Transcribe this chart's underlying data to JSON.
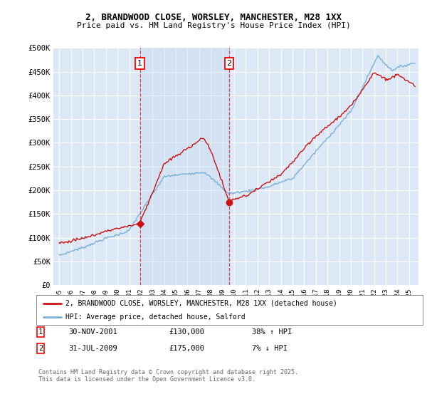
{
  "title_line1": "2, BRANDWOOD CLOSE, WORSLEY, MANCHESTER, M28 1XX",
  "title_line2": "Price paid vs. HM Land Registry's House Price Index (HPI)",
  "ylim": [
    0,
    500000
  ],
  "ytick_vals": [
    0,
    50000,
    100000,
    150000,
    200000,
    250000,
    300000,
    350000,
    400000,
    450000,
    500000
  ],
  "ytick_labels": [
    "£0",
    "£50K",
    "£100K",
    "£150K",
    "£200K",
    "£250K",
    "£300K",
    "£350K",
    "£400K",
    "£450K",
    "£500K"
  ],
  "background_color": "#ffffff",
  "plot_bg_color": "#dce8f5",
  "grid_color": "#ffffff",
  "hpi_color": "#7ab0d8",
  "price_color": "#cc1111",
  "marker1_x_year": 2001.92,
  "marker1_y": 130000,
  "marker2_x_year": 2009.58,
  "marker2_y": 175000,
  "vline_color": "#dd3333",
  "span_color": "#c8dcf0",
  "span_alpha": 0.45,
  "legend_price_label": "2, BRANDWOOD CLOSE, WORSLEY, MANCHESTER, M28 1XX (detached house)",
  "legend_hpi_label": "HPI: Average price, detached house, Salford",
  "footnote": "Contains HM Land Registry data © Crown copyright and database right 2025.\nThis data is licensed under the Open Government Licence v3.0.",
  "xlim_left": 1994.5,
  "xlim_right": 2025.8,
  "xtick_vals": [
    1995,
    1996,
    1997,
    1998,
    1999,
    2000,
    2001,
    2002,
    2003,
    2004,
    2005,
    2006,
    2007,
    2008,
    2009,
    2010,
    2011,
    2012,
    2013,
    2014,
    2015,
    2016,
    2017,
    2018,
    2019,
    2020,
    2021,
    2022,
    2023,
    2024,
    2025
  ]
}
